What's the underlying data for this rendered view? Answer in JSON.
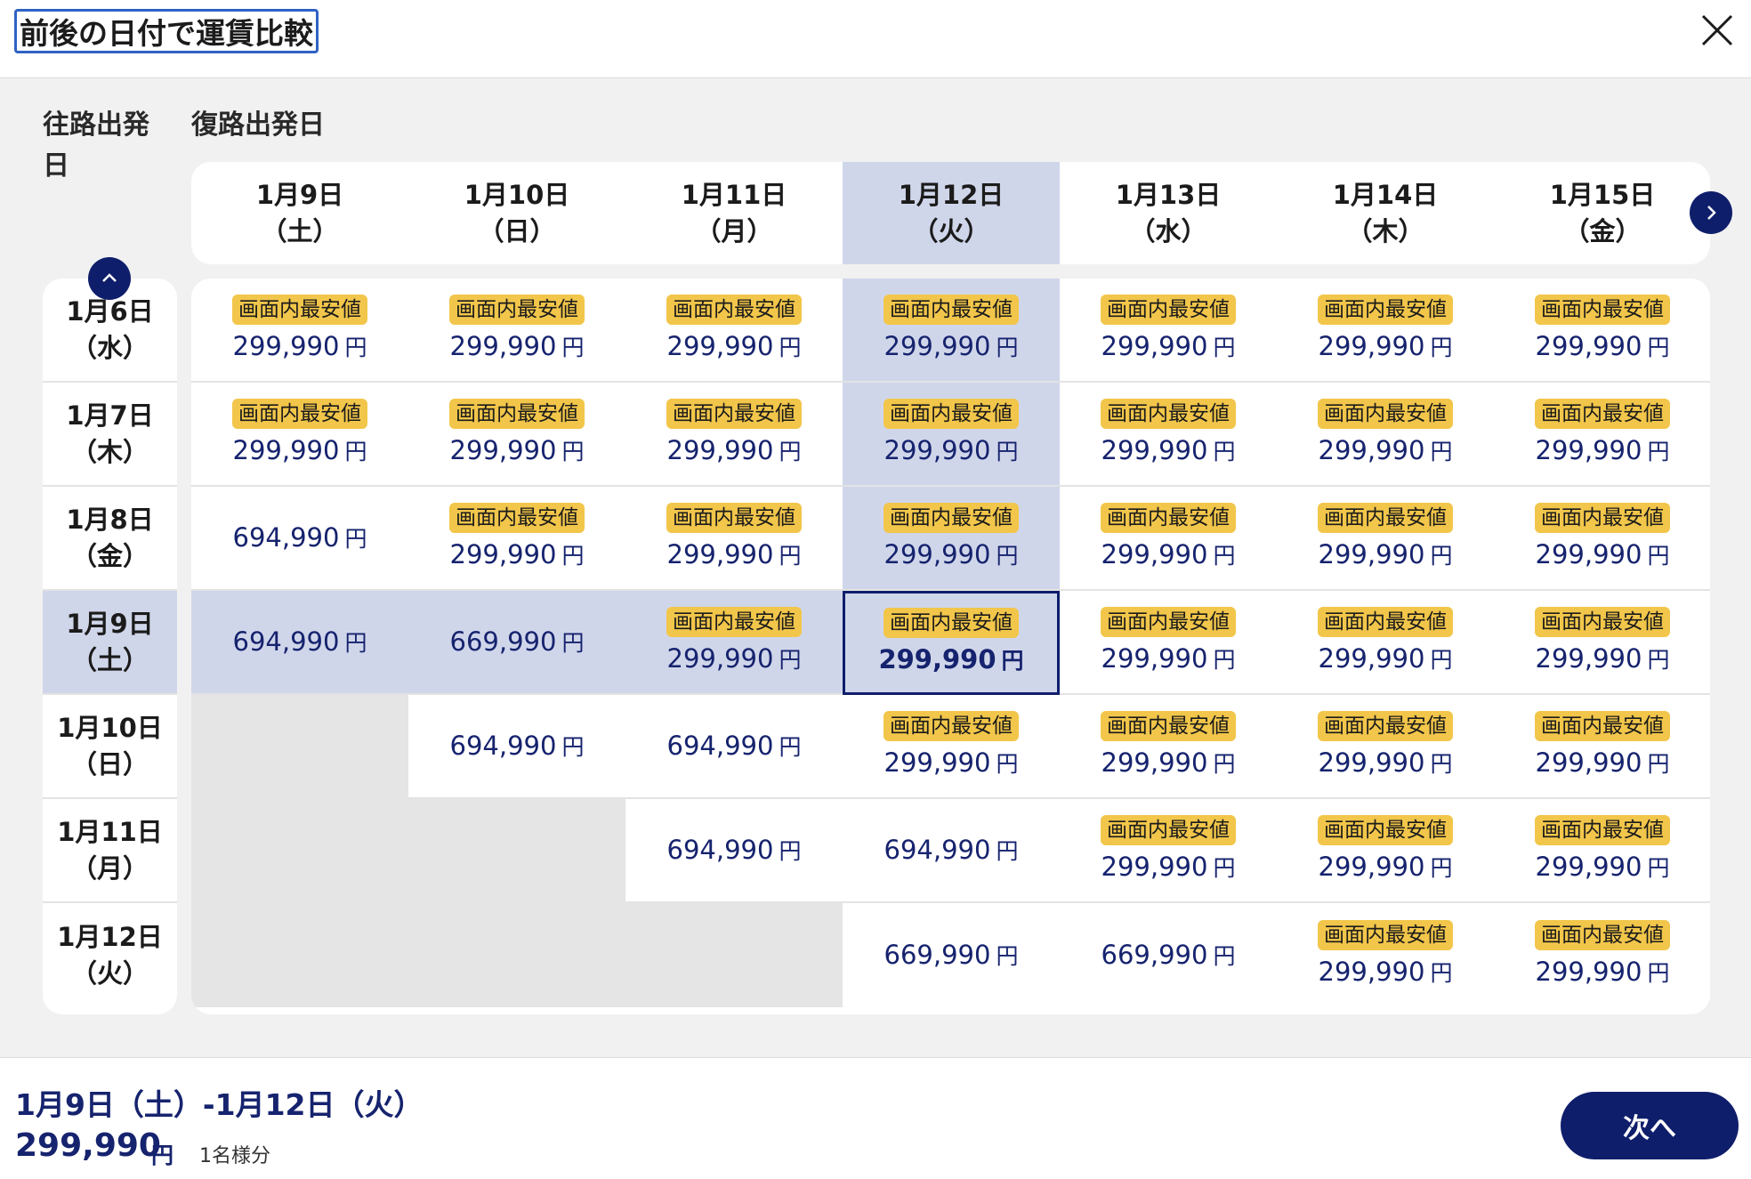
{
  "header": {
    "title": "前後の日付で運賃比較"
  },
  "labels": {
    "outbound": "往路出発日",
    "return": "復路出発日"
  },
  "columns": [
    {
      "date": "1月9日",
      "dow": "（土）"
    },
    {
      "date": "1月10日",
      "dow": "（日）"
    },
    {
      "date": "1月11日",
      "dow": "（月）"
    },
    {
      "date": "1月12日",
      "dow": "（火）"
    },
    {
      "date": "1月13日",
      "dow": "（水）"
    },
    {
      "date": "1月14日",
      "dow": "（木）"
    },
    {
      "date": "1月15日",
      "dow": "（金）"
    }
  ],
  "rows": [
    {
      "date": "1月6日",
      "dow": "（水）"
    },
    {
      "date": "1月7日",
      "dow": "（木）"
    },
    {
      "date": "1月8日",
      "dow": "（金）"
    },
    {
      "date": "1月9日",
      "dow": "（土）"
    },
    {
      "date": "1月10日",
      "dow": "（日）"
    },
    {
      "date": "1月11日",
      "dow": "（月）"
    },
    {
      "date": "1月12日",
      "dow": "（火）"
    }
  ],
  "selected": {
    "row": 3,
    "col": 3
  },
  "badge_text": "画面内最安値",
  "currency": "円",
  "grid": [
    [
      {
        "p": "299,990",
        "b": true
      },
      {
        "p": "299,990",
        "b": true
      },
      {
        "p": "299,990",
        "b": true
      },
      {
        "p": "299,990",
        "b": true
      },
      {
        "p": "299,990",
        "b": true
      },
      {
        "p": "299,990",
        "b": true
      },
      {
        "p": "299,990",
        "b": true
      }
    ],
    [
      {
        "p": "299,990",
        "b": true
      },
      {
        "p": "299,990",
        "b": true
      },
      {
        "p": "299,990",
        "b": true
      },
      {
        "p": "299,990",
        "b": true
      },
      {
        "p": "299,990",
        "b": true
      },
      {
        "p": "299,990",
        "b": true
      },
      {
        "p": "299,990",
        "b": true
      }
    ],
    [
      {
        "p": "694,990",
        "b": false
      },
      {
        "p": "299,990",
        "b": true
      },
      {
        "p": "299,990",
        "b": true
      },
      {
        "p": "299,990",
        "b": true
      },
      {
        "p": "299,990",
        "b": true
      },
      {
        "p": "299,990",
        "b": true
      },
      {
        "p": "299,990",
        "b": true
      }
    ],
    [
      {
        "p": "694,990",
        "b": false
      },
      {
        "p": "669,990",
        "b": false
      },
      {
        "p": "299,990",
        "b": true
      },
      {
        "p": "299,990",
        "b": true
      },
      {
        "p": "299,990",
        "b": true
      },
      {
        "p": "299,990",
        "b": true
      },
      {
        "p": "299,990",
        "b": true
      }
    ],
    [
      null,
      {
        "p": "694,990",
        "b": false
      },
      {
        "p": "694,990",
        "b": false
      },
      {
        "p": "299,990",
        "b": true
      },
      {
        "p": "299,990",
        "b": true
      },
      {
        "p": "299,990",
        "b": true
      },
      {
        "p": "299,990",
        "b": true
      }
    ],
    [
      null,
      null,
      {
        "p": "694,990",
        "b": false
      },
      {
        "p": "694,990",
        "b": false
      },
      {
        "p": "299,990",
        "b": true
      },
      {
        "p": "299,990",
        "b": true
      },
      {
        "p": "299,990",
        "b": true
      }
    ],
    [
      null,
      null,
      null,
      {
        "p": "669,990",
        "b": false
      },
      {
        "p": "669,990",
        "b": false
      },
      {
        "p": "299,990",
        "b": true
      },
      {
        "p": "299,990",
        "b": true
      }
    ]
  ],
  "footer": {
    "dates": "1月9日（土）-1月12日（火）",
    "price": "299,990",
    "currency": "円",
    "pax": "1名様分",
    "next_label": "次へ"
  }
}
